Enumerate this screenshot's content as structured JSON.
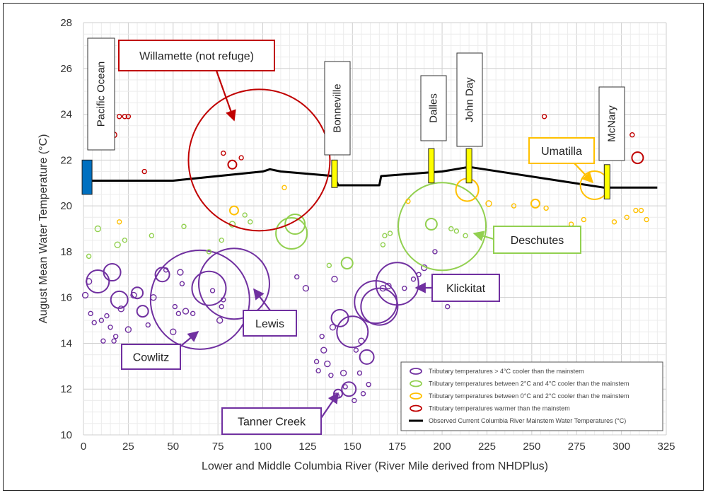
{
  "chart_data": {
    "type": "scatter",
    "title": "",
    "xlabel": "Lower and Middle Columbia River (River Mile derived from NHDPlus)",
    "ylabel": "August Mean Water Temperature (°C)",
    "xlim": [
      0,
      325
    ],
    "ylim": [
      10,
      28
    ],
    "x_ticks": [
      0,
      25,
      50,
      75,
      100,
      125,
      150,
      175,
      200,
      225,
      250,
      275,
      300,
      325
    ],
    "y_ticks": [
      10,
      12,
      14,
      16,
      18,
      20,
      22,
      24,
      26,
      28
    ],
    "grid": true,
    "legend_position": "bottom-right",
    "colors": {
      "purple": "#7030a0",
      "green": "#92d050",
      "orange": "#ffc000",
      "red": "#c00000",
      "black": "#000000",
      "dam": "#ffff00",
      "ocean": "#0070c0"
    },
    "legend": [
      {
        "label": "Tributary temperatures > 4°C cooler than the mainstem",
        "color": "#7030a0",
        "symbol": "circle"
      },
      {
        "label": "Tributary temperatures between 2°C and 4°C cooler than the mainstem",
        "color": "#92d050",
        "symbol": "circle"
      },
      {
        "label": "Tributary temperatures between 0°C and 2°C cooler than the mainstem",
        "color": "#ffc000",
        "symbol": "circle"
      },
      {
        "label": "Tributary temperatures warmer than the mainstem",
        "color": "#c00000",
        "symbol": "circle"
      },
      {
        "label": "Observed Current Columbia River Mainstem Water Temperatures (°C)",
        "color": "#000000",
        "symbol": "line"
      }
    ],
    "mainstem_line": [
      [
        0,
        21.1
      ],
      [
        50,
        21.1
      ],
      [
        100,
        21.5
      ],
      [
        104,
        21.6
      ],
      [
        110,
        21.5
      ],
      [
        140,
        21.3
      ],
      [
        142,
        20.9
      ],
      [
        165,
        20.9
      ],
      [
        166,
        21.3
      ],
      [
        200,
        21.5
      ],
      [
        215,
        21.7
      ],
      [
        265,
        21.1
      ],
      [
        290,
        20.8
      ],
      [
        320,
        20.8
      ]
    ],
    "series": [
      {
        "color_key": "purple",
        "points": [
          [
            1,
            16.1,
            4
          ],
          [
            3,
            16.7,
            4
          ],
          [
            8,
            16.7,
            16
          ],
          [
            4,
            15.3,
            3
          ],
          [
            6,
            14.9,
            3
          ],
          [
            10,
            15.0,
            3
          ],
          [
            11,
            14.1,
            3
          ],
          [
            13,
            15.2,
            3
          ],
          [
            15,
            14.7,
            3
          ],
          [
            16,
            17.1,
            12
          ],
          [
            17,
            14.1,
            3
          ],
          [
            18,
            14.3,
            3
          ],
          [
            20,
            15.9,
            12
          ],
          [
            21,
            15.5,
            4
          ],
          [
            25,
            14.6,
            4
          ],
          [
            28,
            16.1,
            4
          ],
          [
            30,
            16.2,
            8
          ],
          [
            33,
            15.4,
            8
          ],
          [
            36,
            14.8,
            3
          ],
          [
            39,
            16.0,
            4
          ],
          [
            44,
            17.0,
            10
          ],
          [
            46,
            17.2,
            3
          ],
          [
            50,
            14.5,
            4
          ],
          [
            51,
            15.6,
            3
          ],
          [
            53,
            15.3,
            3
          ],
          [
            54,
            17.1,
            4
          ],
          [
            55,
            16.6,
            3
          ],
          [
            57,
            15.4,
            4
          ],
          [
            61,
            15.3,
            3
          ],
          [
            65,
            15.9,
            70
          ],
          [
            70,
            16.4,
            24
          ],
          [
            72,
            16.3,
            3
          ],
          [
            76,
            15.0,
            4
          ],
          [
            77,
            15.6,
            3
          ],
          [
            78,
            15.9,
            3
          ],
          [
            84,
            16.6,
            50
          ],
          [
            119,
            16.9,
            3
          ],
          [
            124,
            16.4,
            4
          ],
          [
            130,
            13.2,
            3
          ],
          [
            131,
            12.8,
            3
          ],
          [
            133,
            14.3,
            3
          ],
          [
            134,
            13.7,
            4
          ],
          [
            136,
            13.1,
            4
          ],
          [
            138,
            12.6,
            3
          ],
          [
            139,
            14.7,
            4
          ],
          [
            140,
            16.8,
            4
          ],
          [
            141,
            11.7,
            4
          ],
          [
            142,
            11.8,
            6
          ],
          [
            143,
            15.1,
            12
          ],
          [
            145,
            12.7,
            4
          ],
          [
            146,
            12.1,
            3
          ],
          [
            148,
            12.0,
            10
          ],
          [
            150,
            14.5,
            22
          ],
          [
            151,
            11.5,
            3
          ],
          [
            152,
            13.7,
            3
          ],
          [
            154,
            12.7,
            3
          ],
          [
            155,
            14.1,
            4
          ],
          [
            156,
            11.8,
            3
          ],
          [
            158,
            13.4,
            10
          ],
          [
            159,
            12.2,
            3
          ],
          [
            163,
            15.8,
            30
          ],
          [
            165,
            15.6,
            26
          ],
          [
            167,
            16.4,
            4
          ],
          [
            170,
            16.5,
            4
          ],
          [
            175,
            16.6,
            30
          ],
          [
            179,
            16.4,
            3
          ],
          [
            184,
            16.8,
            3
          ],
          [
            187,
            17.0,
            3
          ],
          [
            190,
            17.3,
            4
          ],
          [
            196,
            18.0,
            3
          ],
          [
            203,
            15.6,
            3
          ]
        ]
      },
      {
        "color_key": "green",
        "points": [
          [
            3,
            17.8,
            3
          ],
          [
            8,
            19.0,
            4
          ],
          [
            19,
            18.3,
            4
          ],
          [
            23,
            18.5,
            3
          ],
          [
            38,
            18.7,
            3
          ],
          [
            56,
            19.1,
            3
          ],
          [
            70,
            18.0,
            3
          ],
          [
            77,
            18.5,
            3
          ],
          [
            83,
            19.2,
            4
          ],
          [
            90,
            19.6,
            3
          ],
          [
            93,
            19.3,
            3
          ],
          [
            116,
            18.8,
            22
          ],
          [
            118,
            19.2,
            14
          ],
          [
            137,
            17.4,
            3
          ],
          [
            147,
            17.5,
            8
          ],
          [
            167,
            18.3,
            3
          ],
          [
            168,
            18.7,
            3
          ],
          [
            171,
            18.8,
            3
          ],
          [
            194,
            19.2,
            8
          ],
          [
            200,
            19.1,
            62
          ],
          [
            205,
            19.0,
            3
          ],
          [
            208,
            18.9,
            3
          ],
          [
            213,
            18.7,
            3
          ]
        ]
      },
      {
        "color_key": "orange",
        "points": [
          [
            20,
            19.3,
            3
          ],
          [
            84,
            19.8,
            6
          ],
          [
            112,
            20.8,
            3
          ],
          [
            181,
            20.2,
            3
          ],
          [
            214,
            20.7,
            16
          ],
          [
            226,
            20.1,
            4
          ],
          [
            240,
            20.0,
            3
          ],
          [
            252,
            20.1,
            6
          ],
          [
            258,
            19.9,
            3
          ],
          [
            272,
            19.2,
            3
          ],
          [
            279,
            19.4,
            3
          ],
          [
            285,
            20.9,
            20
          ],
          [
            296,
            19.3,
            3
          ],
          [
            303,
            19.5,
            3
          ],
          [
            308,
            19.8,
            3
          ],
          [
            311,
            19.8,
            3
          ],
          [
            314,
            19.4,
            3
          ]
        ]
      },
      {
        "color_key": "red",
        "points": [
          [
            10,
            23.9,
            3
          ],
          [
            12,
            23.9,
            3
          ],
          [
            14,
            23.9,
            3
          ],
          [
            17,
            23.1,
            4
          ],
          [
            20,
            23.9,
            3
          ],
          [
            23,
            23.9,
            3
          ],
          [
            25,
            23.9,
            3
          ],
          [
            34,
            21.5,
            3
          ],
          [
            78,
            22.3,
            3
          ],
          [
            83,
            21.8,
            6
          ],
          [
            88,
            22.1,
            3
          ],
          [
            98,
            22.0,
            100
          ],
          [
            198,
            24.0,
            3
          ],
          [
            257,
            23.9,
            3
          ],
          [
            306,
            23.1,
            3
          ],
          [
            309,
            22.1,
            8
          ]
        ]
      }
    ],
    "dams": [
      {
        "label": "Pacific Ocean",
        "x": 2,
        "color_key": "ocean"
      },
      {
        "label": "Bonneville",
        "x": 140,
        "color_key": "dam"
      },
      {
        "label": "Dalles",
        "x": 194,
        "color_key": "dam"
      },
      {
        "label": "John Day",
        "x": 215,
        "color_key": "dam"
      },
      {
        "label": "McNary",
        "x": 292,
        "color_key": "dam"
      }
    ],
    "callouts": [
      {
        "label": "Willamette (not refuge)",
        "color_key": "red"
      },
      {
        "label": "Umatilla",
        "color_key": "orange"
      },
      {
        "label": "Deschutes",
        "color_key": "green"
      },
      {
        "label": "Klickitat",
        "color_key": "purple"
      },
      {
        "label": "Lewis",
        "color_key": "purple"
      },
      {
        "label": "Cowlitz",
        "color_key": "purple"
      },
      {
        "label": "Tanner Creek",
        "color_key": "purple"
      }
    ]
  }
}
